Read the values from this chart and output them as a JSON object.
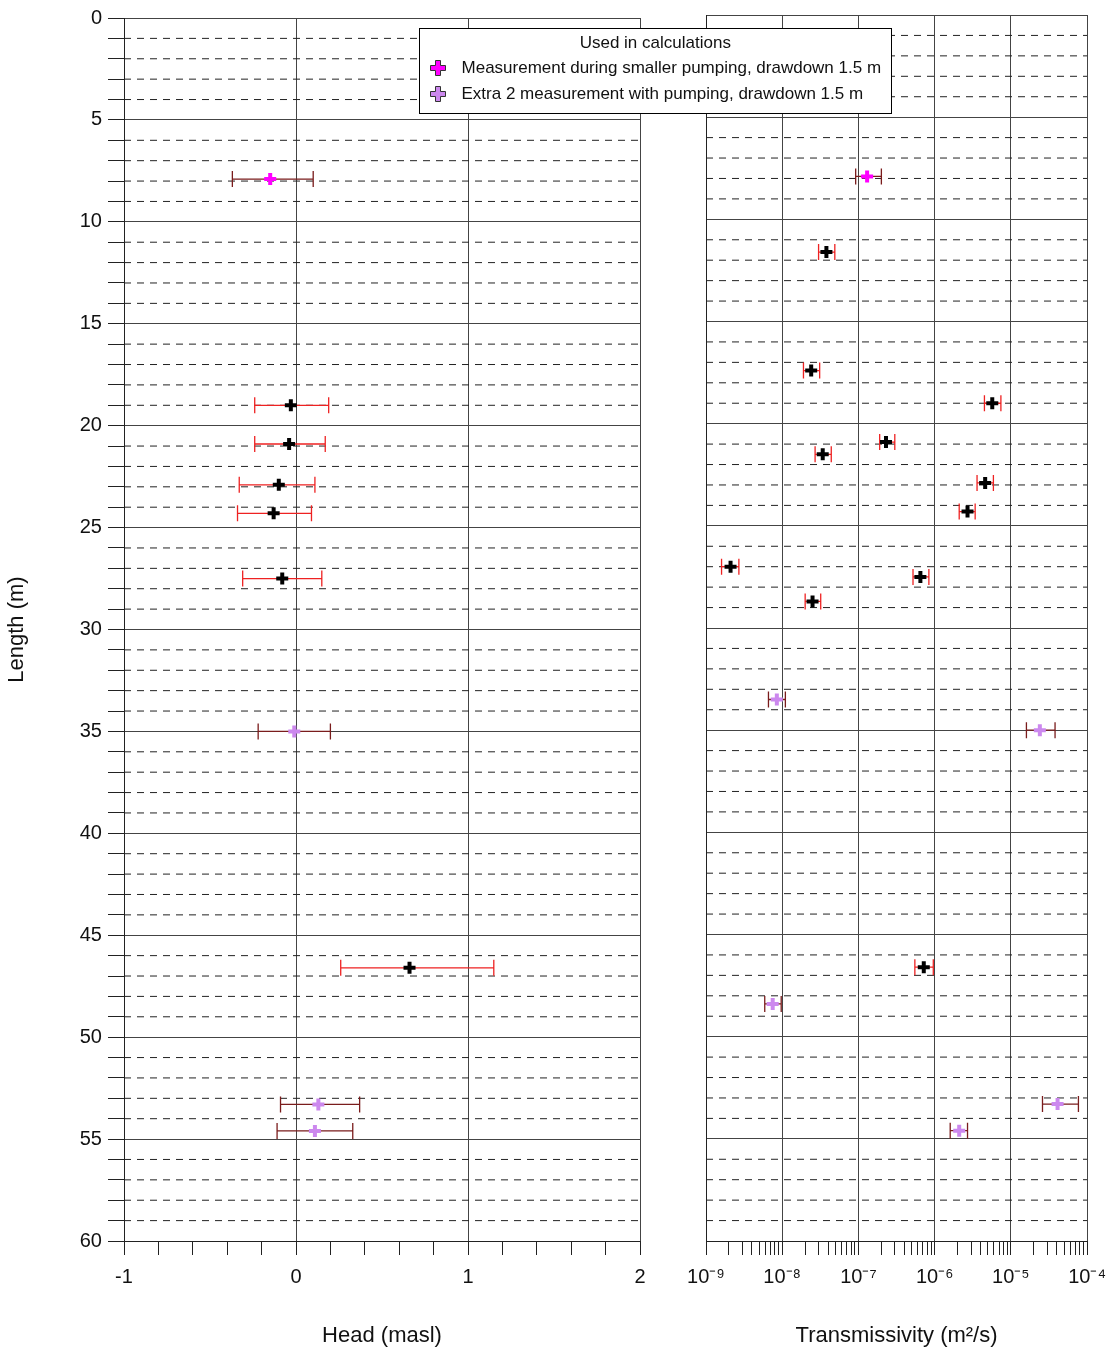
{
  "chart_data": [
    {
      "type": "scatter",
      "xlabel": "Head (masl)",
      "ylabel": "Length (m)",
      "legend_title": "Used in calculations",
      "legend": "top",
      "marker": "cross",
      "grid": true,
      "xlim": [
        -1,
        2
      ],
      "xticks": [
        -1,
        {
          "value": -0.8,
          "label": null
        },
        {
          "value": -0.6,
          "label": null
        },
        {
          "value": -0.4,
          "label": null
        },
        {
          "value": -0.2,
          "label": null
        },
        0,
        {
          "value": 0.2,
          "label": null
        },
        {
          "value": 0.4,
          "label": null
        },
        {
          "value": 0.6,
          "label": null
        },
        {
          "value": 0.8,
          "label": null
        },
        1,
        {
          "value": 1.2,
          "label": null
        },
        {
          "value": 1.4,
          "label": null
        },
        {
          "value": 1.6,
          "label": null
        },
        {
          "value": 1.8,
          "label": null
        },
        2
      ],
      "ylim": [
        60,
        0
      ],
      "yticks": [
        0,
        {
          "value": 1,
          "label": null
        },
        {
          "value": 2,
          "label": null
        },
        {
          "value": 3,
          "label": null
        },
        {
          "value": 4,
          "label": null
        },
        5,
        {
          "value": 6,
          "label": null
        },
        {
          "value": 7,
          "label": null
        },
        {
          "value": 8,
          "label": null
        },
        {
          "value": 9,
          "label": null
        },
        10,
        {
          "value": 11,
          "label": null
        },
        {
          "value": 12,
          "label": null
        },
        {
          "value": 13,
          "label": null
        },
        {
          "value": 14,
          "label": null
        },
        15,
        {
          "value": 16,
          "label": null
        },
        {
          "value": 17,
          "label": null
        },
        {
          "value": 18,
          "label": null
        },
        {
          "value": 19,
          "label": null
        },
        20,
        {
          "value": 21,
          "label": null
        },
        {
          "value": 22,
          "label": null
        },
        {
          "value": 23,
          "label": null
        },
        {
          "value": 24,
          "label": null
        },
        25,
        {
          "value": 26,
          "label": null
        },
        {
          "value": 27,
          "label": null
        },
        {
          "value": 28,
          "label": null
        },
        {
          "value": 29,
          "label": null
        },
        30,
        {
          "value": 31,
          "label": null
        },
        {
          "value": 32,
          "label": null
        },
        {
          "value": 33,
          "label": null
        },
        {
          "value": 34,
          "label": null
        },
        35,
        {
          "value": 36,
          "label": null
        },
        {
          "value": 37,
          "label": null
        },
        {
          "value": 38,
          "label": null
        },
        {
          "value": 39,
          "label": null
        },
        40,
        {
          "value": 41,
          "label": null
        },
        {
          "value": 42,
          "label": null
        },
        {
          "value": 43,
          "label": null
        },
        {
          "value": 44,
          "label": null
        },
        45,
        {
          "value": 46,
          "label": null
        },
        {
          "value": 47,
          "label": null
        },
        {
          "value": 48,
          "label": null
        },
        {
          "value": 49,
          "label": null
        },
        50,
        {
          "value": 51,
          "label": null
        },
        {
          "value": 52,
          "label": null
        },
        {
          "value": 53,
          "label": null
        },
        {
          "value": 54,
          "label": null
        },
        55,
        {
          "value": 56,
          "label": null
        },
        {
          "value": 57,
          "label": null
        },
        {
          "value": 58,
          "label": null
        },
        {
          "value": 59,
          "label": null
        },
        60
      ],
      "series": [
        {
          "color": "#000000",
          "x": [
            -0.03,
            -0.04,
            -0.1,
            -0.13,
            -0.08,
            0.66
          ],
          "values": [
            19.0,
            20.9,
            22.9,
            24.3,
            27.5,
            46.6
          ],
          "xerrors": [
            [
              -0.24,
              0.19
            ],
            [
              -0.24,
              0.17
            ],
            [
              -0.33,
              0.11
            ],
            [
              -0.34,
              0.09
            ],
            [
              -0.31,
              0.15
            ],
            [
              0.26,
              1.15
            ]
          ]
        },
        {
          "name": "Measurement during smaller pumping, drawdown 1.5 m",
          "color": "#ff00ff",
          "x": [
            -0.15
          ],
          "values": [
            7.9
          ],
          "xerrors": [
            [
              -0.37,
              0.1
            ]
          ]
        },
        {
          "name": "Extra 2 measurement with pumping, drawdown 1.5 m",
          "color": "#cc88ee",
          "x": [
            -0.01,
            0.13,
            0.11
          ],
          "values": [
            35.0,
            53.3,
            54.6
          ],
          "xerrors": [
            [
              -0.22,
              0.2
            ],
            [
              -0.09,
              0.37
            ],
            [
              -0.11,
              0.33
            ]
          ]
        }
      ]
    },
    {
      "type": "scatter",
      "xlabel": "Transmissivity (m²/s)",
      "log": "x",
      "marker": "cross",
      "grid": true,
      "tick_labels": "x",
      "xlim": [
        1e-09,
        0.0001
      ],
      "xticks": [
        {
          "value": 1e-09,
          "label": "10⁻⁹"
        },
        {
          "value": 2e-09,
          "label": null
        },
        {
          "value": 3e-09,
          "label": null
        },
        {
          "value": 4e-09,
          "label": null
        },
        {
          "value": 5e-09,
          "label": null
        },
        {
          "value": 6e-09,
          "label": null
        },
        {
          "value": 7e-09,
          "label": null
        },
        {
          "value": 8e-09,
          "label": null
        },
        {
          "value": 9e-09,
          "label": null
        },
        {
          "value": 1e-08,
          "label": "10⁻⁸"
        },
        {
          "value": 2e-08,
          "label": null
        },
        {
          "value": 3e-08,
          "label": null
        },
        {
          "value": 4e-08,
          "label": null
        },
        {
          "value": 5e-08,
          "label": null
        },
        {
          "value": 6e-08,
          "label": null
        },
        {
          "value": 7e-08,
          "label": null
        },
        {
          "value": 8e-08,
          "label": null
        },
        {
          "value": 9e-08,
          "label": null
        },
        {
          "value": 1e-07,
          "label": "10⁻⁷"
        },
        {
          "value": 2e-07,
          "label": null
        },
        {
          "value": 3e-07,
          "label": null
        },
        {
          "value": 4e-07,
          "label": null
        },
        {
          "value": 5e-07,
          "label": null
        },
        {
          "value": 6e-07,
          "label": null
        },
        {
          "value": 7e-07,
          "label": null
        },
        {
          "value": 8e-07,
          "label": null
        },
        {
          "value": 9e-07,
          "label": null
        },
        {
          "value": 1e-06,
          "label": "10⁻⁶"
        },
        {
          "value": 2e-06,
          "label": null
        },
        {
          "value": 3e-06,
          "label": null
        },
        {
          "value": 4e-06,
          "label": null
        },
        {
          "value": 5e-06,
          "label": null
        },
        {
          "value": 6e-06,
          "label": null
        },
        {
          "value": 7e-06,
          "label": null
        },
        {
          "value": 8e-06,
          "label": null
        },
        {
          "value": 9e-06,
          "label": null
        },
        {
          "value": 1e-05,
          "label": "10⁻⁵"
        },
        {
          "value": 2e-05,
          "label": null
        },
        {
          "value": 3e-05,
          "label": null
        },
        {
          "value": 4e-05,
          "label": null
        },
        {
          "value": 5e-05,
          "label": null
        },
        {
          "value": 6e-05,
          "label": null
        },
        {
          "value": 7e-05,
          "label": null
        },
        {
          "value": 8e-05,
          "label": null
        },
        {
          "value": 9e-05,
          "label": null
        },
        {
          "value": 0.0001,
          "label": "10⁻⁴"
        }
      ],
      "ylim": [
        60,
        0
      ],
      "yticks": [
        0,
        {
          "value": 1,
          "label": null
        },
        {
          "value": 2,
          "label": null
        },
        {
          "value": 3,
          "label": null
        },
        {
          "value": 4,
          "label": null
        },
        5,
        {
          "value": 6,
          "label": null
        },
        {
          "value": 7,
          "label": null
        },
        {
          "value": 8,
          "label": null
        },
        {
          "value": 9,
          "label": null
        },
        10,
        {
          "value": 11,
          "label": null
        },
        {
          "value": 12,
          "label": null
        },
        {
          "value": 13,
          "label": null
        },
        {
          "value": 14,
          "label": null
        },
        15,
        {
          "value": 16,
          "label": null
        },
        {
          "value": 17,
          "label": null
        },
        {
          "value": 18,
          "label": null
        },
        {
          "value": 19,
          "label": null
        },
        20,
        {
          "value": 21,
          "label": null
        },
        {
          "value": 22,
          "label": null
        },
        {
          "value": 23,
          "label": null
        },
        {
          "value": 24,
          "label": null
        },
        25,
        {
          "value": 26,
          "label": null
        },
        {
          "value": 27,
          "label": null
        },
        {
          "value": 28,
          "label": null
        },
        {
          "value": 29,
          "label": null
        },
        30,
        {
          "value": 31,
          "label": null
        },
        {
          "value": 32,
          "label": null
        },
        {
          "value": 33,
          "label": null
        },
        {
          "value": 34,
          "label": null
        },
        35,
        {
          "value": 36,
          "label": null
        },
        {
          "value": 37,
          "label": null
        },
        {
          "value": 38,
          "label": null
        },
        {
          "value": 39,
          "label": null
        },
        40,
        {
          "value": 41,
          "label": null
        },
        {
          "value": 42,
          "label": null
        },
        {
          "value": 43,
          "label": null
        },
        {
          "value": 44,
          "label": null
        },
        45,
        {
          "value": 46,
          "label": null
        },
        {
          "value": 47,
          "label": null
        },
        {
          "value": 48,
          "label": null
        },
        {
          "value": 49,
          "label": null
        },
        50,
        {
          "value": 51,
          "label": null
        },
        {
          "value": 52,
          "label": null
        },
        {
          "value": 53,
          "label": null
        },
        {
          "value": 54,
          "label": null
        },
        55,
        {
          "value": 56,
          "label": null
        },
        {
          "value": 57,
          "label": null
        },
        {
          "value": 58,
          "label": null
        },
        {
          "value": 59,
          "label": null
        },
        60
      ],
      "series": [
        {
          "color": "#000000",
          "x": [
            3.8e-08,
            2.4e-08,
            5.7e-06,
            2.3e-07,
            3.4e-08,
            4.6e-06,
            2.7e-06,
            2.1e-09,
            6.5e-07,
            2.5e-08,
            7.2e-07
          ],
          "values": [
            11.6,
            17.4,
            19.0,
            20.9,
            21.5,
            22.9,
            24.3,
            27.0,
            27.5,
            28.7,
            46.6
          ],
          "xerrors": [
            [
              3e-08,
              4.9e-08
            ],
            [
              1.9e-08,
              3.1e-08
            ],
            [
              4.5e-06,
              7.4e-06
            ],
            [
              1.9e-07,
              3e-07
            ],
            [
              2.7e-08,
              4.4e-08
            ],
            [
              3.6e-06,
              5.9e-06
            ],
            [
              2.1e-06,
              3.4e-06
            ],
            [
              1.6e-09,
              2.7e-09
            ],
            [
              5.2e-07,
              8.4e-07
            ],
            [
              2e-08,
              3.2e-08
            ],
            [
              5.5e-07,
              9.6e-07
            ]
          ]
        },
        {
          "color": "#ff00ff",
          "x": [
            1.3e-07
          ],
          "values": [
            7.9
          ],
          "xerrors": [
            [
              9.2e-08,
              2e-07
            ]
          ]
        },
        {
          "color": "#cc88ee",
          "x": [
            8.5e-09,
            2.4e-05,
            7.5e-09,
            4.1e-05,
            2.1e-06
          ],
          "values": [
            33.5,
            35.0,
            48.4,
            53.3,
            54.6
          ],
          "xerrors": [
            [
              6.6e-09,
              1.1e-08
            ],
            [
              1.6e-05,
              3.8e-05
            ],
            [
              5.9e-09,
              9.7e-09
            ],
            [
              2.6e-05,
              7.7e-05
            ],
            [
              1.6e-06,
              2.7e-06
            ]
          ]
        }
      ]
    }
  ]
}
